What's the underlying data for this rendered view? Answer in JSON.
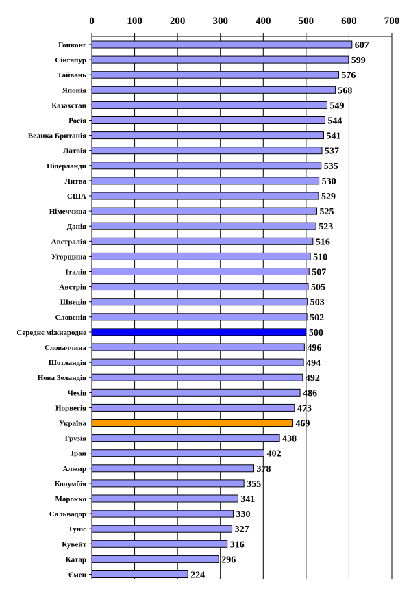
{
  "chart_data": {
    "type": "bar",
    "orientation": "horizontal",
    "xlim": [
      0,
      700
    ],
    "xticks": [
      0,
      100,
      200,
      300,
      400,
      500,
      600,
      700
    ],
    "grid": "vertical",
    "x_axis_position": "top",
    "colors": {
      "default": "#9999FF",
      "highlight_average": "#0000FF",
      "highlight_ukraine": "#FF9900",
      "grid": "#000000"
    },
    "categories": [
      "Гонконг",
      "Сінгапур",
      "Тайвань",
      "Японія",
      "Казахстан",
      "Росія",
      "Велика Британія",
      "Латвія",
      "Нідерланди",
      "Литва",
      "США",
      "Німеччина",
      "Данія",
      "Австралія",
      "Угорщина",
      "Італія",
      "Австрія",
      "Швеція",
      "Словенія",
      "Середнє міжнародне",
      "Словаччина",
      "Шотландія",
      "Нова Зеландія",
      "Чехія",
      "Норвегія",
      "Україна",
      "Грузія",
      "Іран",
      "Алжир",
      "Колумбія",
      "Марокко",
      "Сальвадор",
      "Туніс",
      "Кувейт",
      "Катар",
      "Ємен"
    ],
    "values": [
      607,
      599,
      576,
      568,
      549,
      544,
      541,
      537,
      535,
      530,
      529,
      525,
      523,
      516,
      510,
      507,
      505,
      503,
      502,
      500,
      496,
      494,
      492,
      486,
      473,
      469,
      438,
      402,
      378,
      355,
      341,
      330,
      327,
      316,
      296,
      224
    ],
    "highlights": {
      "Середнє міжнародне": "highlight_average",
      "Україна": "highlight_ukraine"
    }
  }
}
